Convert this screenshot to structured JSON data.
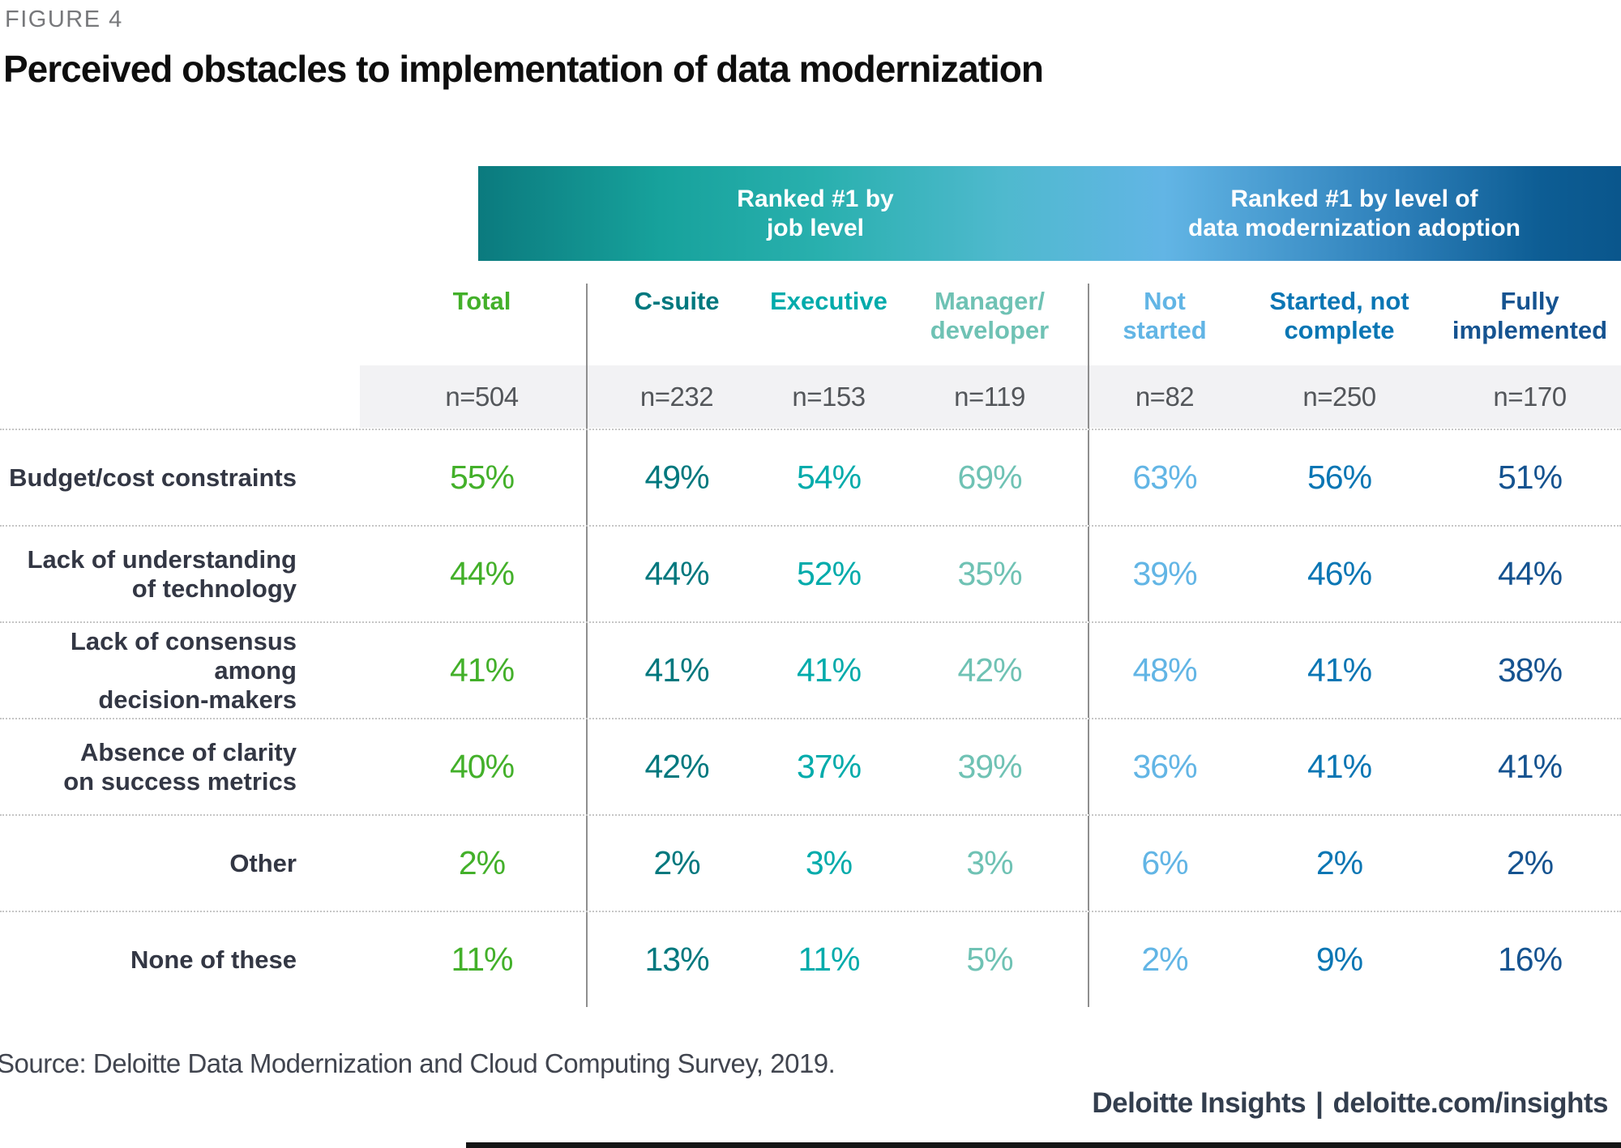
{
  "ui": {
    "figure_label": "FIGURE 4",
    "title": "Perceived obstacles to implementation of data modernization",
    "band": {
      "left_label": "Ranked #1 by\njob level",
      "right_label": "Ranked #1 by level of\ndata modernization adoption"
    },
    "columns": [
      {
        "label": "Total",
        "n": "n=504"
      },
      {
        "label": "C-suite",
        "n": "n=232"
      },
      {
        "label": "Executive",
        "n": "n=153"
      },
      {
        "label": "Manager/\ndeveloper",
        "n": "n=119"
      },
      {
        "label": "Not\nstarted",
        "n": "n=82"
      },
      {
        "label": "Started, not\ncomplete",
        "n": "n=250"
      },
      {
        "label": "Fully\nimplemented",
        "n": "n=170"
      }
    ],
    "rows": [
      {
        "label": "Budget/cost constraints",
        "values": [
          "55%",
          "49%",
          "54%",
          "69%",
          "63%",
          "56%",
          "51%"
        ]
      },
      {
        "label": "Lack of understanding\nof technology",
        "values": [
          "44%",
          "44%",
          "52%",
          "35%",
          "39%",
          "46%",
          "44%"
        ]
      },
      {
        "label": "Lack of consensus among\ndecision-makers",
        "values": [
          "41%",
          "41%",
          "41%",
          "42%",
          "48%",
          "41%",
          "38%"
        ]
      },
      {
        "label": "Absence of clarity\non success metrics",
        "values": [
          "40%",
          "42%",
          "37%",
          "39%",
          "36%",
          "41%",
          "41%"
        ]
      },
      {
        "label": "Other",
        "values": [
          "2%",
          "2%",
          "3%",
          "3%",
          "6%",
          "2%",
          "2%"
        ]
      },
      {
        "label": "None of these",
        "values": [
          "11%",
          "13%",
          "11%",
          "5%",
          "2%",
          "9%",
          "16%"
        ]
      }
    ],
    "source": "Source: Deloitte Data Modernization and Cloud Computing Survey, 2019.",
    "footer": {
      "brand": "Deloitte Insights",
      "divider": "|",
      "link": "deloitte.com/insights"
    }
  },
  "colors": {
    "total_green": "#43B02A",
    "csuite_teal_dark": "#00787E",
    "executive_teal": "#00ABAB",
    "manager_seafoam": "#6FC2B4",
    "not_started_light_blue": "#62B5E5",
    "started_blue": "#0A76B4",
    "fully_navy": "#155390",
    "band_gradient_start": "#0B7A7E",
    "band_gradient_teal": "#29B0AE",
    "band_gradient_light_blue": "#62B5E5",
    "band_gradient_end": "#0A568C",
    "row_label_text": "#333744",
    "n_text": "#53565A",
    "grid_line": "#8F8F8F",
    "dotted_line": "#C6C6C6",
    "n_band_bg": "#F2F2F4"
  },
  "chart_data": {
    "type": "table",
    "title": "Perceived obstacles to implementation of data modernization",
    "figure_label": "FIGURE 4",
    "column_groups": [
      {
        "label": "Ranked #1 by job level",
        "columns": [
          "C-suite",
          "Executive",
          "Manager/developer"
        ]
      },
      {
        "label": "Ranked #1 by level of data modernization adoption",
        "columns": [
          "Not started",
          "Started, not complete",
          "Fully implemented"
        ]
      }
    ],
    "columns": [
      "Total",
      "C-suite",
      "Executive",
      "Manager/developer",
      "Not started",
      "Started, not complete",
      "Fully implemented"
    ],
    "sample_sizes": [
      504,
      232,
      153,
      119,
      82,
      250,
      170
    ],
    "rows": [
      {
        "label": "Budget/cost constraints",
        "values_pct": [
          55,
          49,
          54,
          69,
          63,
          56,
          51
        ]
      },
      {
        "label": "Lack of understanding of technology",
        "values_pct": [
          44,
          44,
          52,
          35,
          39,
          46,
          44
        ]
      },
      {
        "label": "Lack of consensus among decision-makers",
        "values_pct": [
          41,
          41,
          41,
          42,
          48,
          41,
          38
        ]
      },
      {
        "label": "Absence of clarity on success metrics",
        "values_pct": [
          40,
          42,
          37,
          39,
          36,
          41,
          41
        ]
      },
      {
        "label": "Other",
        "values_pct": [
          2,
          2,
          3,
          3,
          6,
          2,
          2
        ]
      },
      {
        "label": "None of these",
        "values_pct": [
          11,
          13,
          11,
          5,
          2,
          9,
          16
        ]
      }
    ],
    "source": "Source: Deloitte Data Modernization and Cloud Computing Survey, 2019."
  }
}
